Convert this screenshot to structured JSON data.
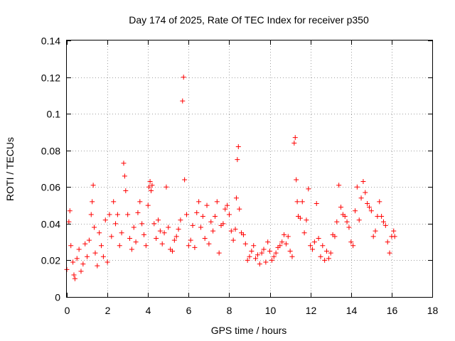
{
  "chart_data": {
    "type": "scatter",
    "title": "Day 174 of 2025, Rate Of TEC Index for receiver p350",
    "xlabel": "GPS time / hours",
    "ylabel": "ROTI / TECUs",
    "xlim": [
      0,
      18
    ],
    "ylim": [
      0,
      0.14
    ],
    "x_ticks": [
      0,
      2,
      4,
      6,
      8,
      10,
      12,
      14,
      16,
      18
    ],
    "x_tick_labels": [
      "0",
      "2",
      "4",
      "6",
      "8",
      "10",
      "12",
      "14",
      "16",
      "18"
    ],
    "y_ticks": [
      0,
      0.02,
      0.04,
      0.06,
      0.08,
      0.1,
      0.12,
      0.14
    ],
    "y_tick_labels": [
      "0",
      "0.02",
      "0.04",
      "0.06",
      "0.08",
      "0.1",
      "0.12",
      "0.14"
    ],
    "grid": true,
    "marker": "+",
    "marker_color": "#ff0000",
    "series": [
      {
        "name": "p350",
        "x": [
          0.0,
          0.1,
          0.15,
          0.2,
          0.3,
          0.35,
          0.4,
          0.5,
          0.6,
          0.7,
          0.8,
          0.9,
          1.0,
          1.1,
          1.2,
          1.25,
          1.3,
          1.35,
          1.4,
          1.5,
          1.6,
          1.7,
          1.8,
          1.9,
          2.0,
          2.1,
          2.2,
          2.3,
          2.4,
          2.5,
          2.6,
          2.7,
          2.8,
          2.85,
          2.9,
          3.0,
          3.1,
          3.2,
          3.3,
          3.4,
          3.5,
          3.6,
          3.7,
          3.8,
          3.9,
          4.0,
          4.05,
          4.1,
          4.15,
          4.2,
          4.3,
          4.4,
          4.5,
          4.6,
          4.7,
          4.8,
          4.9,
          5.0,
          5.1,
          5.2,
          5.3,
          5.4,
          5.5,
          5.6,
          5.7,
          5.75,
          5.8,
          5.9,
          6.0,
          6.1,
          6.2,
          6.3,
          6.4,
          6.5,
          6.6,
          6.7,
          6.8,
          6.9,
          7.0,
          7.1,
          7.2,
          7.3,
          7.4,
          7.5,
          7.6,
          7.7,
          7.8,
          7.9,
          8.0,
          8.1,
          8.2,
          8.3,
          8.35,
          8.4,
          8.45,
          8.5,
          8.6,
          8.7,
          8.8,
          8.9,
          9.0,
          9.1,
          9.2,
          9.3,
          9.4,
          9.5,
          9.6,
          9.7,
          9.8,
          9.9,
          10.0,
          10.1,
          10.2,
          10.3,
          10.4,
          10.5,
          10.6,
          10.7,
          10.8,
          10.9,
          11.0,
          11.1,
          11.2,
          11.25,
          11.3,
          11.35,
          11.4,
          11.5,
          11.6,
          11.7,
          11.8,
          11.9,
          12.0,
          12.1,
          12.2,
          12.3,
          12.4,
          12.5,
          12.6,
          12.7,
          12.8,
          12.9,
          13.0,
          13.1,
          13.2,
          13.3,
          13.4,
          13.5,
          13.6,
          13.7,
          13.8,
          13.9,
          14.0,
          14.1,
          14.2,
          14.3,
          14.4,
          14.5,
          14.6,
          14.7,
          14.8,
          14.9,
          15.0,
          15.1,
          15.2,
          15.3,
          15.4,
          15.5,
          15.6,
          15.7,
          15.8,
          15.9,
          16.0,
          16.1,
          16.15
        ],
        "y": [
          0.015,
          0.041,
          0.047,
          0.028,
          0.019,
          0.012,
          0.01,
          0.021,
          0.026,
          0.014,
          0.018,
          0.029,
          0.022,
          0.031,
          0.045,
          0.052,
          0.061,
          0.038,
          0.024,
          0.017,
          0.035,
          0.028,
          0.022,
          0.042,
          0.019,
          0.045,
          0.033,
          0.052,
          0.04,
          0.045,
          0.028,
          0.035,
          0.073,
          0.066,
          0.058,
          0.045,
          0.032,
          0.026,
          0.038,
          0.03,
          0.046,
          0.052,
          0.04,
          0.034,
          0.028,
          0.05,
          0.06,
          0.063,
          0.058,
          0.061,
          0.04,
          0.032,
          0.042,
          0.036,
          0.029,
          0.035,
          0.06,
          0.038,
          0.026,
          0.025,
          0.031,
          0.033,
          0.037,
          0.042,
          0.107,
          0.12,
          0.064,
          0.045,
          0.028,
          0.031,
          0.039,
          0.027,
          0.046,
          0.052,
          0.038,
          0.044,
          0.032,
          0.05,
          0.029,
          0.041,
          0.036,
          0.044,
          0.052,
          0.024,
          0.039,
          0.04,
          0.048,
          0.05,
          0.045,
          0.036,
          0.031,
          0.037,
          0.054,
          0.075,
          0.082,
          0.048,
          0.035,
          0.034,
          0.029,
          0.02,
          0.022,
          0.025,
          0.028,
          0.021,
          0.023,
          0.018,
          0.024,
          0.026,
          0.019,
          0.03,
          0.025,
          0.02,
          0.022,
          0.024,
          0.027,
          0.028,
          0.03,
          0.034,
          0.029,
          0.033,
          0.025,
          0.022,
          0.084,
          0.087,
          0.064,
          0.052,
          0.044,
          0.043,
          0.052,
          0.035,
          0.042,
          0.059,
          0.028,
          0.026,
          0.03,
          0.051,
          0.032,
          0.022,
          0.028,
          0.02,
          0.025,
          0.021,
          0.024,
          0.034,
          0.033,
          0.041,
          0.061,
          0.049,
          0.045,
          0.044,
          0.041,
          0.038,
          0.03,
          0.028,
          0.047,
          0.06,
          0.042,
          0.054,
          0.063,
          0.057,
          0.051,
          0.049,
          0.047,
          0.033,
          0.036,
          0.044,
          0.052,
          0.044,
          0.041,
          0.039,
          0.03,
          0.024,
          0.033,
          0.036,
          0.033
        ]
      }
    ]
  }
}
